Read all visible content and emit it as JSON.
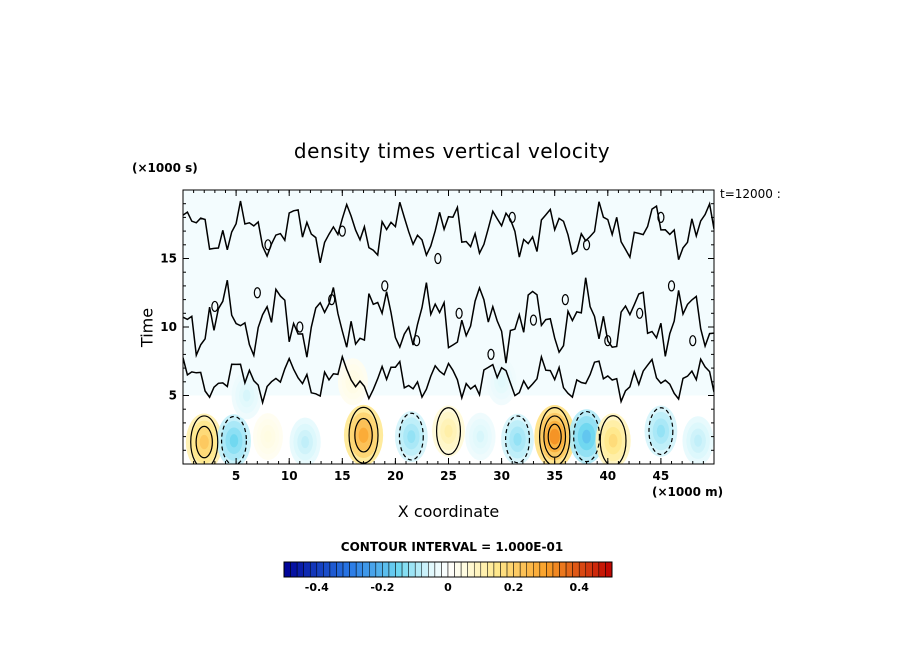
{
  "chart_data": {
    "type": "heatmap",
    "title": "density times vertical velocity",
    "xlabel": "X coordinate",
    "ylabel": "Time",
    "x_multiplier": "(×1000 m)",
    "y_multiplier": "(×1000 s)",
    "time_label": "t=12000 :",
    "xlim": [
      0,
      50
    ],
    "ylim": [
      0,
      20
    ],
    "xticks": [
      "5",
      "10",
      "15",
      "20",
      "25",
      "30",
      "35",
      "40",
      "45"
    ],
    "yticks": [
      "5",
      "10",
      "15"
    ],
    "contour_interval_label": "CONTOUR INTERVAL = 1.000E-01",
    "colorbar": {
      "range": [
        -0.5,
        0.5
      ],
      "ticks": [
        "-0.4",
        "-0.2",
        "0",
        "0.2",
        "0.4"
      ],
      "tick_values": [
        -0.4,
        -0.2,
        0,
        0.2,
        0.4
      ]
    },
    "blobs": [
      {
        "x": 2.0,
        "y": 1.6,
        "value": 0.22
      },
      {
        "x": 4.8,
        "y": 1.7,
        "value": -0.15
      },
      {
        "x": 8.0,
        "y": 2.0,
        "value": 0.05
      },
      {
        "x": 11.5,
        "y": 1.6,
        "value": -0.08
      },
      {
        "x": 17.0,
        "y": 2.1,
        "value": 0.28
      },
      {
        "x": 21.5,
        "y": 2.0,
        "value": -0.12
      },
      {
        "x": 25.0,
        "y": 2.4,
        "value": 0.12
      },
      {
        "x": 28.0,
        "y": 2.0,
        "value": -0.06
      },
      {
        "x": 31.5,
        "y": 1.8,
        "value": -0.12
      },
      {
        "x": 35.0,
        "y": 2.0,
        "value": 0.32
      },
      {
        "x": 38.0,
        "y": 2.0,
        "value": -0.18
      },
      {
        "x": 40.5,
        "y": 1.7,
        "value": 0.18
      },
      {
        "x": 45.0,
        "y": 2.4,
        "value": -0.12
      },
      {
        "x": 48.5,
        "y": 1.7,
        "value": -0.08
      },
      {
        "x": 6.0,
        "y": 5.0,
        "value": -0.06
      },
      {
        "x": 16.0,
        "y": 6.0,
        "value": 0.05
      },
      {
        "x": 30.0,
        "y": 6.0,
        "value": -0.05
      }
    ]
  }
}
